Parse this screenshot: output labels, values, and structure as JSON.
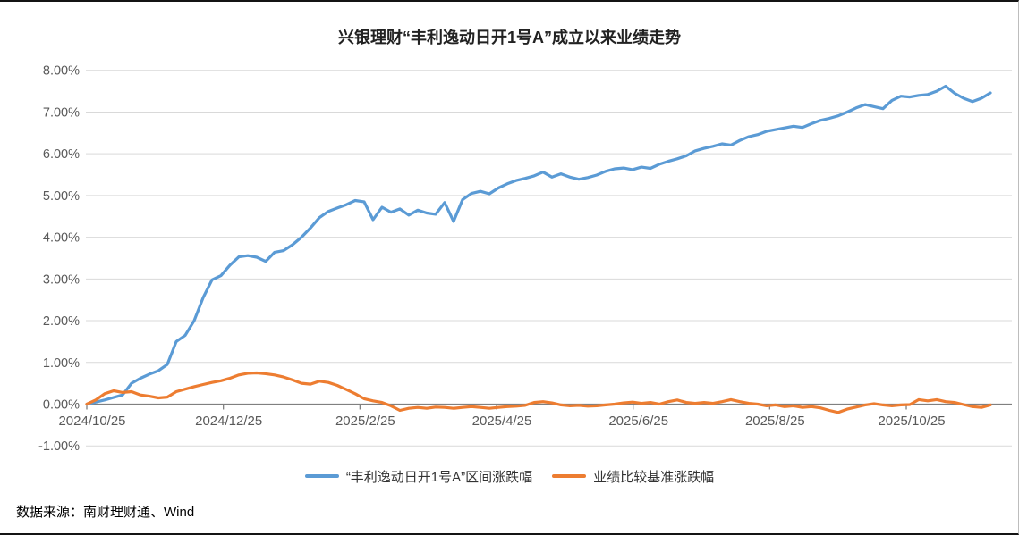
{
  "page": {
    "title": "兴银理财“丰利逸动日开1号A”成立以来业绩走势",
    "source_note": "数据来源：南财理财通、Wind"
  },
  "chart_data": {
    "type": "line",
    "title": "兴银理财“丰利逸动日开1号A”成立以来业绩走势",
    "xlabel": "",
    "ylabel": "",
    "unit": "%",
    "ylim": [
      -1,
      8
    ],
    "grid": "horizontal",
    "legend_position": "bottom",
    "y_axis": {
      "tick_labels": [
        "8.00%",
        "7.00%",
        "6.00%",
        "5.00%",
        "4.00%",
        "3.00%",
        "2.00%",
        "1.00%",
        "0.00%",
        "-1.00%"
      ],
      "tick_values": [
        8,
        7,
        6,
        5,
        4,
        3,
        2,
        1,
        0,
        -1
      ]
    },
    "x_axis": {
      "tick_labels": [
        "2024/10/25",
        "2024/12/25",
        "2025/2/25",
        "2025/4/25",
        "2025/6/25",
        "2025/8/25",
        "2025/10/25"
      ],
      "start": "2024/10/25",
      "points_evenly_spaced": true,
      "note": "series values are evenly-spaced estimates read from the plot, from inception 2024/10/25 to the right edge of the data (early 2025/12)"
    },
    "series": [
      {
        "name": "“丰利逸动日开1号A”区间涨跌幅",
        "color": "#5B9BD5",
        "values": [
          0.0,
          0.05,
          0.1,
          0.16,
          0.22,
          0.5,
          0.62,
          0.72,
          0.8,
          0.95,
          1.5,
          1.65,
          2.0,
          2.55,
          2.98,
          3.08,
          3.33,
          3.53,
          3.56,
          3.52,
          3.42,
          3.64,
          3.68,
          3.82,
          4.0,
          4.22,
          4.47,
          4.62,
          4.7,
          4.78,
          4.88,
          4.85,
          4.42,
          4.72,
          4.6,
          4.68,
          4.53,
          4.65,
          4.58,
          4.55,
          4.83,
          4.38,
          4.9,
          5.05,
          5.1,
          5.04,
          5.18,
          5.28,
          5.36,
          5.41,
          5.47,
          5.56,
          5.44,
          5.52,
          5.44,
          5.39,
          5.43,
          5.49,
          5.58,
          5.64,
          5.66,
          5.62,
          5.68,
          5.65,
          5.75,
          5.82,
          5.88,
          5.95,
          6.07,
          6.13,
          6.18,
          6.24,
          6.21,
          6.32,
          6.41,
          6.46,
          6.54,
          6.58,
          6.62,
          6.66,
          6.63,
          6.72,
          6.8,
          6.85,
          6.91,
          7.0,
          7.1,
          7.18,
          7.13,
          7.08,
          7.28,
          7.38,
          7.36,
          7.4,
          7.42,
          7.5,
          7.62,
          7.45,
          7.33,
          7.25,
          7.33,
          7.46
        ]
      },
      {
        "name": "业绩比较基准涨跌幅",
        "color": "#ED7D31",
        "values": [
          0.0,
          0.1,
          0.25,
          0.32,
          0.28,
          0.3,
          0.22,
          0.19,
          0.15,
          0.17,
          0.3,
          0.36,
          0.42,
          0.47,
          0.52,
          0.56,
          0.62,
          0.7,
          0.74,
          0.75,
          0.73,
          0.7,
          0.65,
          0.58,
          0.5,
          0.48,
          0.55,
          0.52,
          0.45,
          0.35,
          0.25,
          0.13,
          0.08,
          0.04,
          -0.04,
          -0.15,
          -0.1,
          -0.08,
          -0.1,
          -0.07,
          -0.08,
          -0.1,
          -0.08,
          -0.06,
          -0.08,
          -0.1,
          -0.08,
          -0.06,
          -0.05,
          -0.03,
          0.04,
          0.06,
          0.03,
          -0.02,
          -0.04,
          -0.03,
          -0.05,
          -0.04,
          -0.02,
          0.0,
          0.03,
          0.05,
          0.02,
          0.04,
          0.0,
          0.06,
          0.1,
          0.04,
          0.02,
          0.04,
          0.02,
          0.06,
          0.11,
          0.06,
          0.02,
          0.0,
          -0.04,
          -0.02,
          -0.06,
          -0.04,
          -0.08,
          -0.06,
          -0.09,
          -0.15,
          -0.2,
          -0.12,
          -0.07,
          -0.02,
          0.01,
          -0.02,
          -0.04,
          -0.02,
          -0.01,
          0.11,
          0.08,
          0.11,
          0.06,
          0.04,
          -0.01,
          -0.06,
          -0.08,
          -0.02
        ]
      }
    ],
    "colors": {
      "grid": "#D9D9D9",
      "axis": "#808080",
      "tick_label": "#595959"
    }
  }
}
